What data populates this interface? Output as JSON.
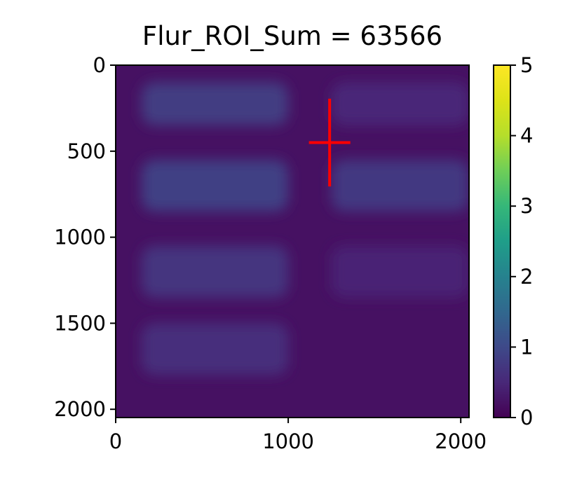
{
  "chart_data": {
    "type": "heatmap",
    "title": "Flur_ROI_Sum = 63566",
    "xlabel": "",
    "ylabel": "",
    "xlim": [
      0,
      2048
    ],
    "ylim": [
      2048,
      0
    ],
    "x_ticks": [
      0,
      1000,
      2000
    ],
    "x_tick_labels": [
      "0",
      "1000",
      "2000"
    ],
    "y_ticks": [
      0,
      500,
      1000,
      1500,
      2000
    ],
    "y_tick_labels": [
      "0",
      "500",
      "1000",
      "1500",
      "2000"
    ],
    "colormap": "viridis",
    "colorbar": {
      "range": [
        0,
        5
      ],
      "ticks": [
        0,
        1,
        2,
        3,
        4,
        5
      ],
      "tick_labels": [
        "0",
        "1",
        "2",
        "3",
        "4",
        "5"
      ]
    },
    "background_value": 0.2,
    "bright_regions": [
      {
        "x": [
          150,
          1000
        ],
        "y": [
          100,
          350
        ],
        "value": 0.8
      },
      {
        "x": [
          1250,
          2048
        ],
        "y": [
          100,
          350
        ],
        "value": 0.5
      },
      {
        "x": [
          150,
          1000
        ],
        "y": [
          550,
          850
        ],
        "value": 0.85
      },
      {
        "x": [
          1250,
          2048
        ],
        "y": [
          550,
          850
        ],
        "value": 0.75
      },
      {
        "x": [
          150,
          1000
        ],
        "y": [
          1050,
          1350
        ],
        "value": 0.7
      },
      {
        "x": [
          1250,
          2048
        ],
        "y": [
          1050,
          1350
        ],
        "value": 0.45
      },
      {
        "x": [
          150,
          1000
        ],
        "y": [
          1500,
          1800
        ],
        "value": 0.6
      }
    ],
    "marker": {
      "shape": "cross",
      "color": "#ff0000",
      "x": 1240,
      "y": 450,
      "x_extent": [
        1120,
        1360
      ],
      "y_extent": [
        195,
        705
      ]
    },
    "grid": false
  }
}
